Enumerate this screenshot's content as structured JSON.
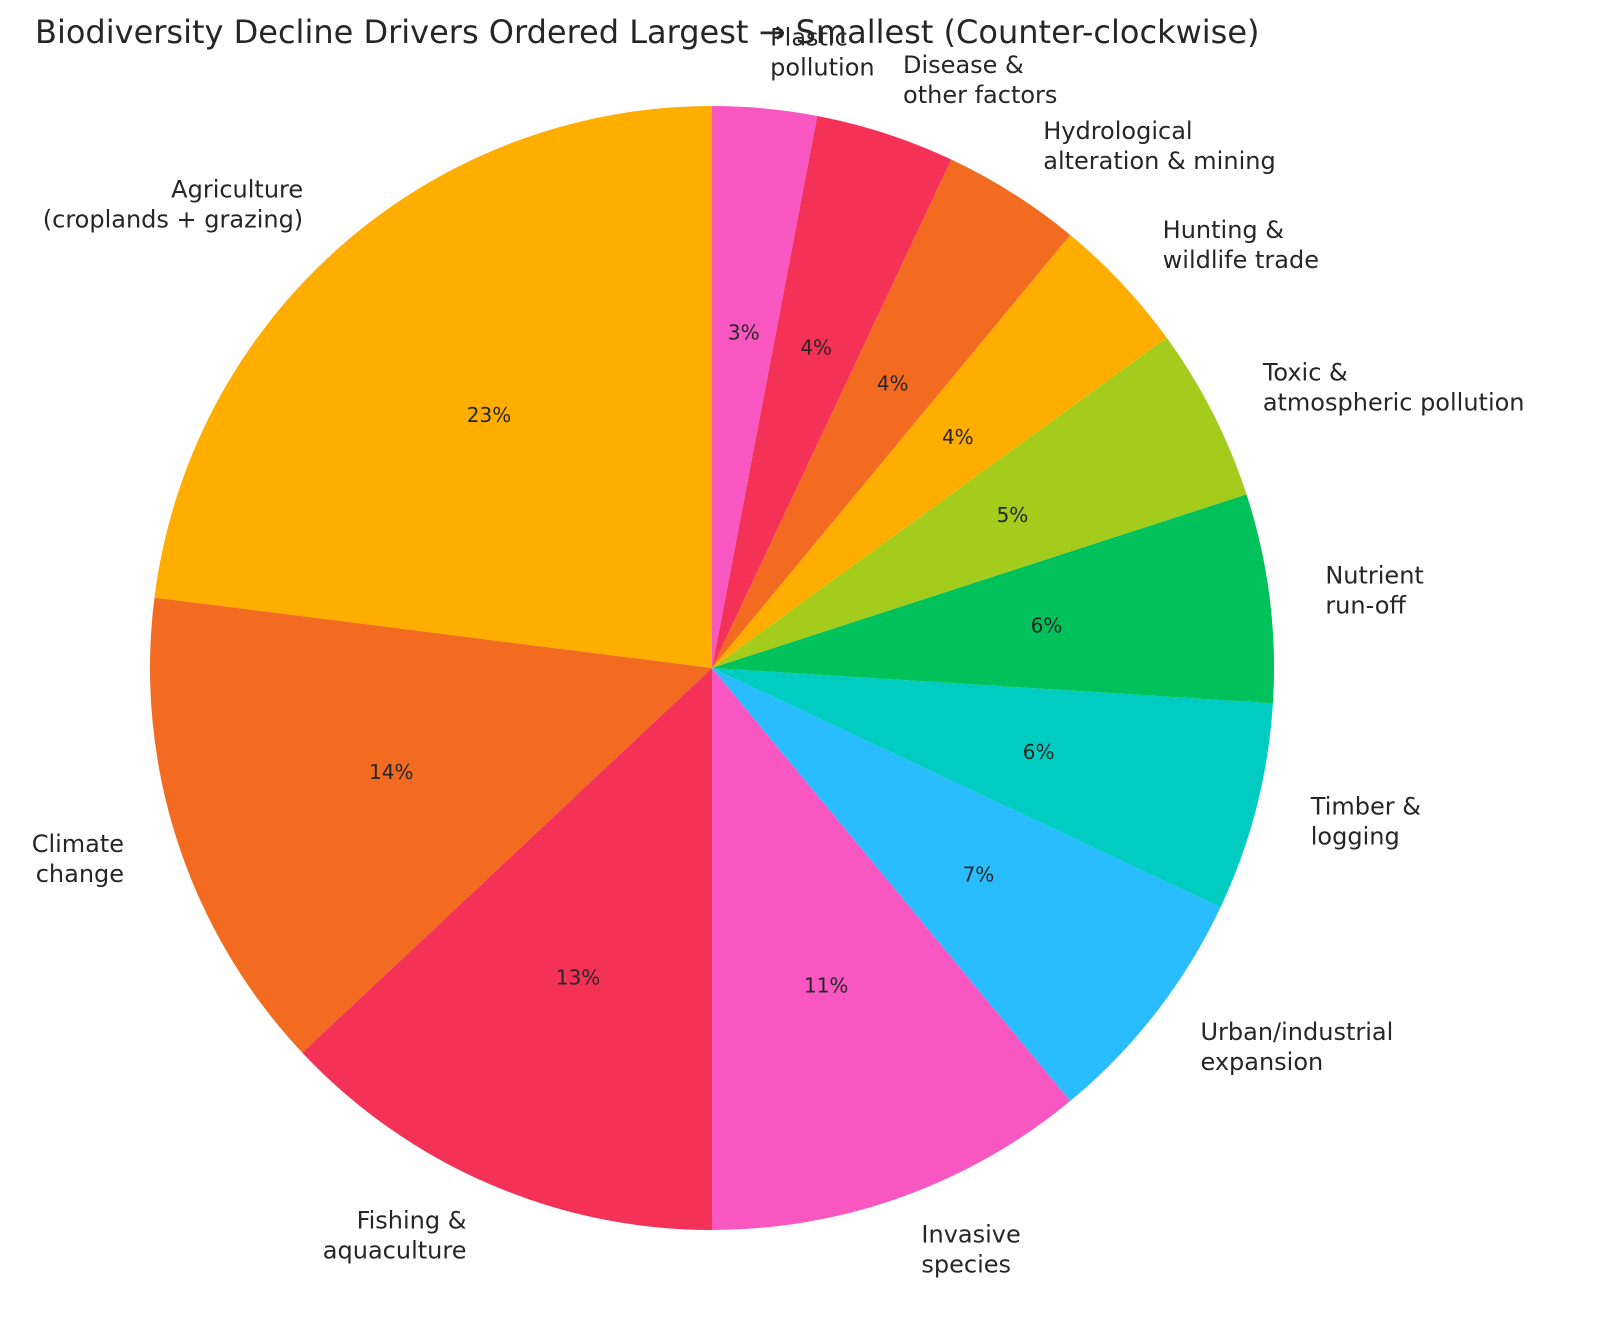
{
  "chart_data": {
    "type": "pie",
    "title": "Biodiversity Decline Drivers Ordered Largest → Smallest (Counter-clockwise)",
    "start_angle_deg": 90,
    "direction": "counter-clockwise",
    "slices": [
      {
        "name": "Agriculture (croplands + grazing)",
        "label_lines": [
          "Agriculture",
          "(croplands + grazing)"
        ],
        "value": 23,
        "pct_label": "23%",
        "color": "#FFAE00"
      },
      {
        "name": "Climate change",
        "label_lines": [
          "Climate",
          "change"
        ],
        "value": 14,
        "pct_label": "14%",
        "color": "#F26B21"
      },
      {
        "name": "Fishing & aquaculture",
        "label_lines": [
          "Fishing &",
          "aquaculture"
        ],
        "value": 13,
        "pct_label": "13%",
        "color": "#F43156"
      },
      {
        "name": "Invasive species",
        "label_lines": [
          "Invasive",
          "species"
        ],
        "value": 11,
        "pct_label": "11%",
        "color": "#F857C1"
      },
      {
        "name": "Urban/industrial expansion",
        "label_lines": [
          "Urban/industrial",
          "expansion"
        ],
        "value": 7,
        "pct_label": "7%",
        "color": "#29BCFF"
      },
      {
        "name": "Timber & logging",
        "label_lines": [
          "Timber &",
          "logging"
        ],
        "value": 6,
        "pct_label": "6%",
        "color": "#00CCC1"
      },
      {
        "name": "Nutrient run-off",
        "label_lines": [
          "Nutrient",
          "run-off"
        ],
        "value": 6,
        "pct_label": "6%",
        "color": "#00C15A"
      },
      {
        "name": "Toxic & atmospheric pollution",
        "label_lines": [
          "Toxic &",
          "atmospheric pollution"
        ],
        "value": 5,
        "pct_label": "5%",
        "color": "#A3CC1C"
      },
      {
        "name": "Hunting & wildlife trade",
        "label_lines": [
          "Hunting &",
          "wildlife trade"
        ],
        "value": 4,
        "pct_label": "4%",
        "color": "#FFAE00"
      },
      {
        "name": "Hydrological alteration & mining",
        "label_lines": [
          "Hydrological",
          "alteration & mining"
        ],
        "value": 4,
        "pct_label": "4%",
        "color": "#F26B21"
      },
      {
        "name": "Disease & other factors",
        "label_lines": [
          "Disease &",
          "other factors"
        ],
        "value": 4,
        "pct_label": "4%",
        "color": "#F43156"
      },
      {
        "name": "Plastic pollution",
        "label_lines": [
          "Plastic",
          "pollution"
        ],
        "value": 3,
        "pct_label": "3%",
        "color": "#F857C1"
      }
    ]
  }
}
